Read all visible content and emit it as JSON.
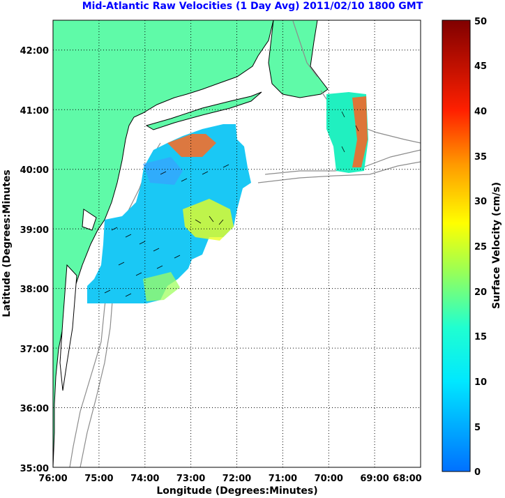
{
  "title": "Mid-Atlantic Raw Velocities (1 Day Avg) 2011/02/10 1800 GMT",
  "map": {
    "x_label": "Longitude (Degrees:Minutes)",
    "y_label": "Latitude (Degrees:Minutes",
    "x_ticks": [
      "76:00",
      "75:00",
      "74:00",
      "73:00",
      "72:00",
      "71:00",
      "70:00",
      "69:00",
      "68:00"
    ],
    "y_ticks": [
      "35:00",
      "36:00",
      "37:00",
      "38:00",
      "39:00",
      "40:00",
      "41:00",
      "42:00"
    ],
    "lon_range": [
      -76,
      -68
    ],
    "lat_range": [
      35,
      42.5
    ],
    "grid": "dotted",
    "land_color": "#5ffaa8",
    "contour_color": "#8c8c8c"
  },
  "colorbar": {
    "label": "Surface Velocity (cm/s)",
    "ticks": [
      "0",
      "5",
      "10",
      "15",
      "20",
      "25",
      "30",
      "35",
      "40",
      "45",
      "50"
    ],
    "min": 0,
    "max": 50,
    "colormap": "jet"
  }
}
